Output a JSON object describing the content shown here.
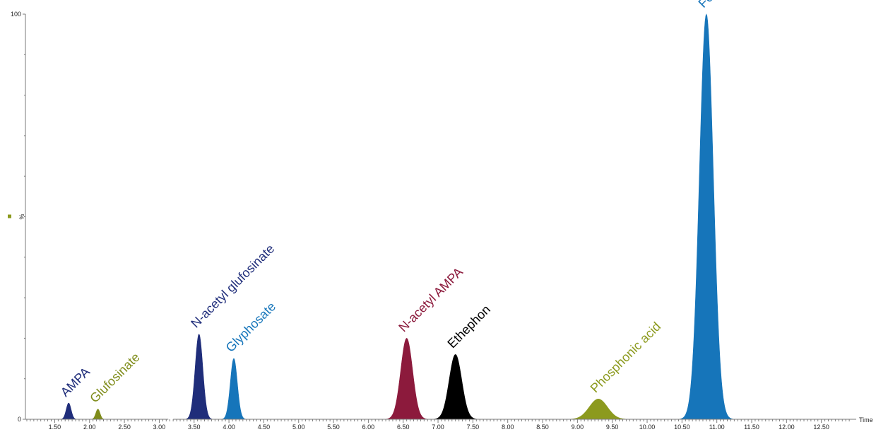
{
  "chart_data": {
    "type": "area",
    "title": "",
    "xlabel": "Time",
    "ylabel": "%",
    "xlim": [
      1.08,
      13.0
    ],
    "ylim": [
      0,
      100
    ],
    "y_ticks": [
      "100",
      "0"
    ],
    "x_ticks": [
      "1.50",
      "2.00",
      "2.50",
      "3.00",
      "3.50",
      "4.00",
      "4.50",
      "5.00",
      "5.50",
      "6.00",
      "6.50",
      "7.00",
      "7.50",
      "8.00",
      "8.50",
      "9.00",
      "9.50",
      "10.00",
      "10.50",
      "11.00",
      "11.50",
      "12.00",
      "12.50"
    ],
    "x_tick_values": [
      1.5,
      2.0,
      2.5,
      3.0,
      3.5,
      4.0,
      4.5,
      5.0,
      5.5,
      6.0,
      6.5,
      7.0,
      7.5,
      8.0,
      8.5,
      9.0,
      9.5,
      10.0,
      10.5,
      11.0,
      11.5,
      12.0,
      12.5
    ],
    "grid": false,
    "legend_marker_color": "#8c9a1e",
    "segments": [
      {
        "from": 1.08,
        "to": 3.13
      },
      {
        "from": 3.2,
        "to": 13.0
      }
    ],
    "series": [
      {
        "name": "AMPA",
        "color": "#1f2d7a",
        "retention_time": 1.7,
        "peak_height": 4,
        "width": 0.035
      },
      {
        "name": "Glufosinate",
        "color": "#7f8c1a",
        "retention_time": 2.12,
        "peak_height": 2.5,
        "width": 0.03
      },
      {
        "name": "N-acetyl glufosinate",
        "color": "#1f2d7a",
        "retention_time": 3.57,
        "peak_height": 21,
        "width": 0.055
      },
      {
        "name": "Glyphosate",
        "color": "#1675ba",
        "retention_time": 4.07,
        "peak_height": 15,
        "width": 0.05
      },
      {
        "name": "N-acetyl AMPA",
        "color": "#8c1a3c",
        "retention_time": 6.55,
        "peak_height": 20,
        "width": 0.085
      },
      {
        "name": "Ethephon",
        "color": "#000000",
        "retention_time": 7.25,
        "peak_height": 16,
        "width": 0.09
      },
      {
        "name": "Phosphonic acid",
        "color": "#8c9a1e",
        "retention_time": 9.3,
        "peak_height": 5,
        "width": 0.13
      },
      {
        "name": "Fosetyl aluminum",
        "color": "#1675ba",
        "retention_time": 10.85,
        "peak_height": 100,
        "width": 0.1
      }
    ]
  }
}
